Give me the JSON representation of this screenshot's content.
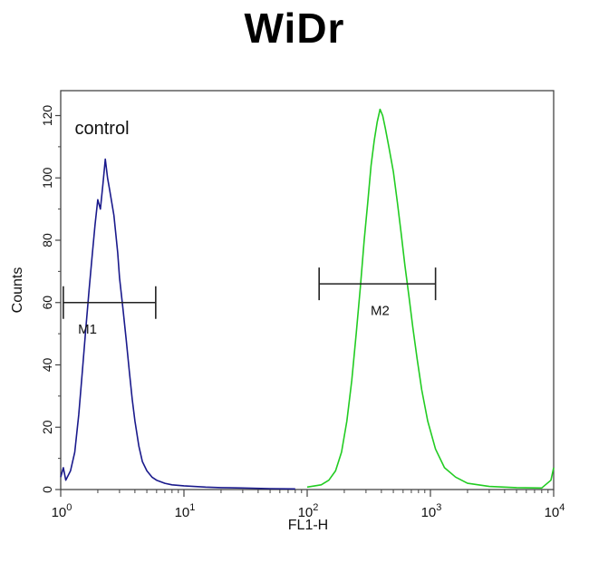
{
  "title": "WiDr",
  "chart_data": {
    "type": "line",
    "title": "WiDr",
    "xlabel": "FL1-H",
    "ylabel": "Counts",
    "x_scale": "log",
    "xlim": [
      1,
      10000
    ],
    "ylim": [
      0,
      128
    ],
    "x_ticks": [
      {
        "value": 1,
        "base": "10",
        "exp": "0"
      },
      {
        "value": 10,
        "base": "10",
        "exp": "1"
      },
      {
        "value": 100,
        "base": "10",
        "exp": "2"
      },
      {
        "value": 1000,
        "base": "10",
        "exp": "3"
      },
      {
        "value": 10000,
        "base": "10",
        "exp": "4"
      }
    ],
    "y_ticks": [
      0,
      20,
      40,
      60,
      80,
      100,
      120
    ],
    "series": [
      {
        "name": "control",
        "color": "#1a1a8c",
        "x": [
          1.0,
          1.05,
          1.1,
          1.2,
          1.3,
          1.4,
          1.5,
          1.6,
          1.7,
          1.8,
          1.9,
          2.0,
          2.1,
          2.2,
          2.3,
          2.4,
          2.5,
          2.6,
          2.7,
          2.8,
          2.9,
          3.0,
          3.2,
          3.4,
          3.6,
          3.8,
          4.0,
          4.3,
          4.6,
          5.0,
          5.5,
          6.0,
          7.0,
          8.0,
          10,
          15,
          20,
          30,
          50,
          80
        ],
        "y": [
          4,
          7,
          3,
          6,
          12,
          24,
          38,
          52,
          64,
          75,
          85,
          93,
          90,
          98,
          106,
          100,
          96,
          92,
          88,
          82,
          76,
          68,
          58,
          48,
          38,
          29,
          22,
          14,
          9,
          6,
          4,
          3,
          2,
          1.5,
          1.2,
          0.8,
          0.6,
          0.5,
          0.3,
          0.2
        ]
      },
      {
        "name": "",
        "color": "#22cc22",
        "x": [
          100,
          130,
          150,
          170,
          190,
          210,
          230,
          250,
          270,
          290,
          310,
          330,
          350,
          370,
          390,
          410,
          430,
          460,
          500,
          540,
          580,
          620,
          670,
          720,
          780,
          850,
          950,
          1100,
          1300,
          1600,
          2000,
          3000,
          5000,
          8000,
          9500,
          10000
        ],
        "y": [
          0.8,
          1.5,
          3,
          6,
          12,
          22,
          35,
          50,
          65,
          80,
          92,
          104,
          112,
          118,
          122,
          120,
          116,
          110,
          102,
          92,
          82,
          72,
          62,
          52,
          42,
          32,
          22,
          13,
          7,
          4,
          2,
          1,
          0.6,
          0.5,
          3,
          7
        ]
      }
    ],
    "annotations": [
      {
        "text": "control",
        "x": 1.3,
        "y": 114
      },
      {
        "text": "M1",
        "x": 1.65,
        "y": 50,
        "marker_range": [
          1.05,
          5.9
        ],
        "marker_y": 60
      },
      {
        "text": "M2",
        "x": 390,
        "y": 56,
        "marker_range": [
          125,
          1100
        ],
        "marker_y": 66
      }
    ]
  }
}
